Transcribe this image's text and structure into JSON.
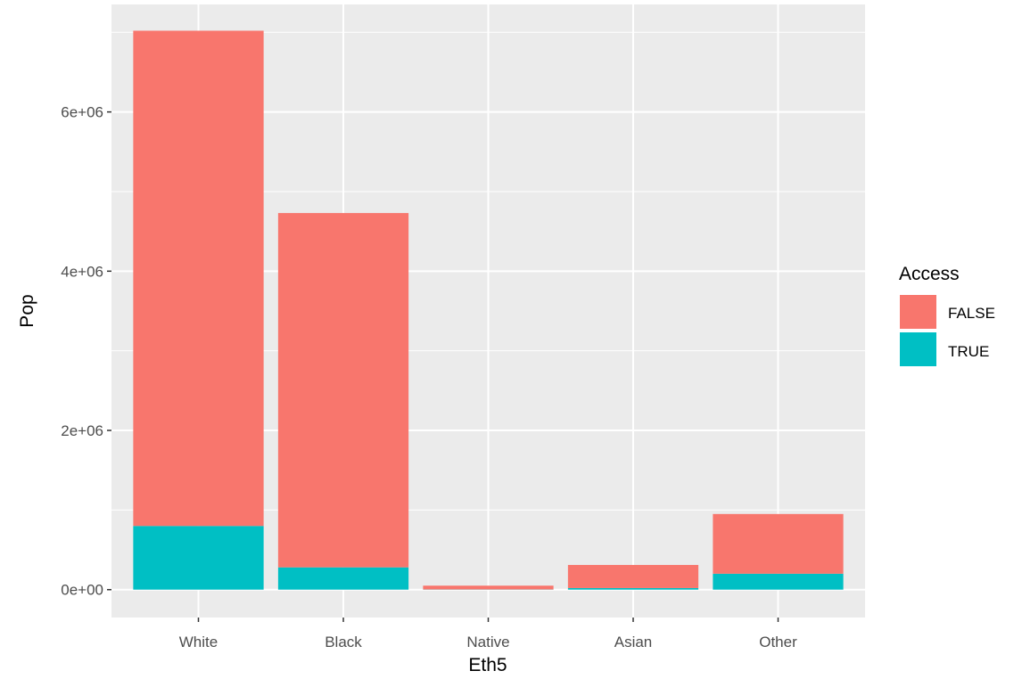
{
  "chart_data": {
    "type": "bar",
    "stacked": true,
    "xlabel": "Eth5",
    "ylabel": "Pop",
    "categories": [
      "White",
      "Black",
      "Native",
      "Asian",
      "Other"
    ],
    "series": [
      {
        "name": "FALSE",
        "color": "#F8766D",
        "values": [
          6220000,
          4450000,
          48000,
          290000,
          750000
        ]
      },
      {
        "name": "TRUE",
        "color": "#00BFC4",
        "values": [
          800000,
          280000,
          2000,
          20000,
          200000
        ]
      }
    ],
    "ylim": [
      -350000,
      7350000
    ],
    "yticks": [
      0,
      2000000,
      4000000,
      6000000
    ],
    "ytick_labels": [
      "0e+00",
      "2e+06",
      "4e+06",
      "6e+06"
    ],
    "legend": {
      "title": "Access",
      "placement": "right",
      "entries": [
        "FALSE",
        "TRUE"
      ]
    },
    "grid": true,
    "panel_background": "#EBEBEB"
  }
}
